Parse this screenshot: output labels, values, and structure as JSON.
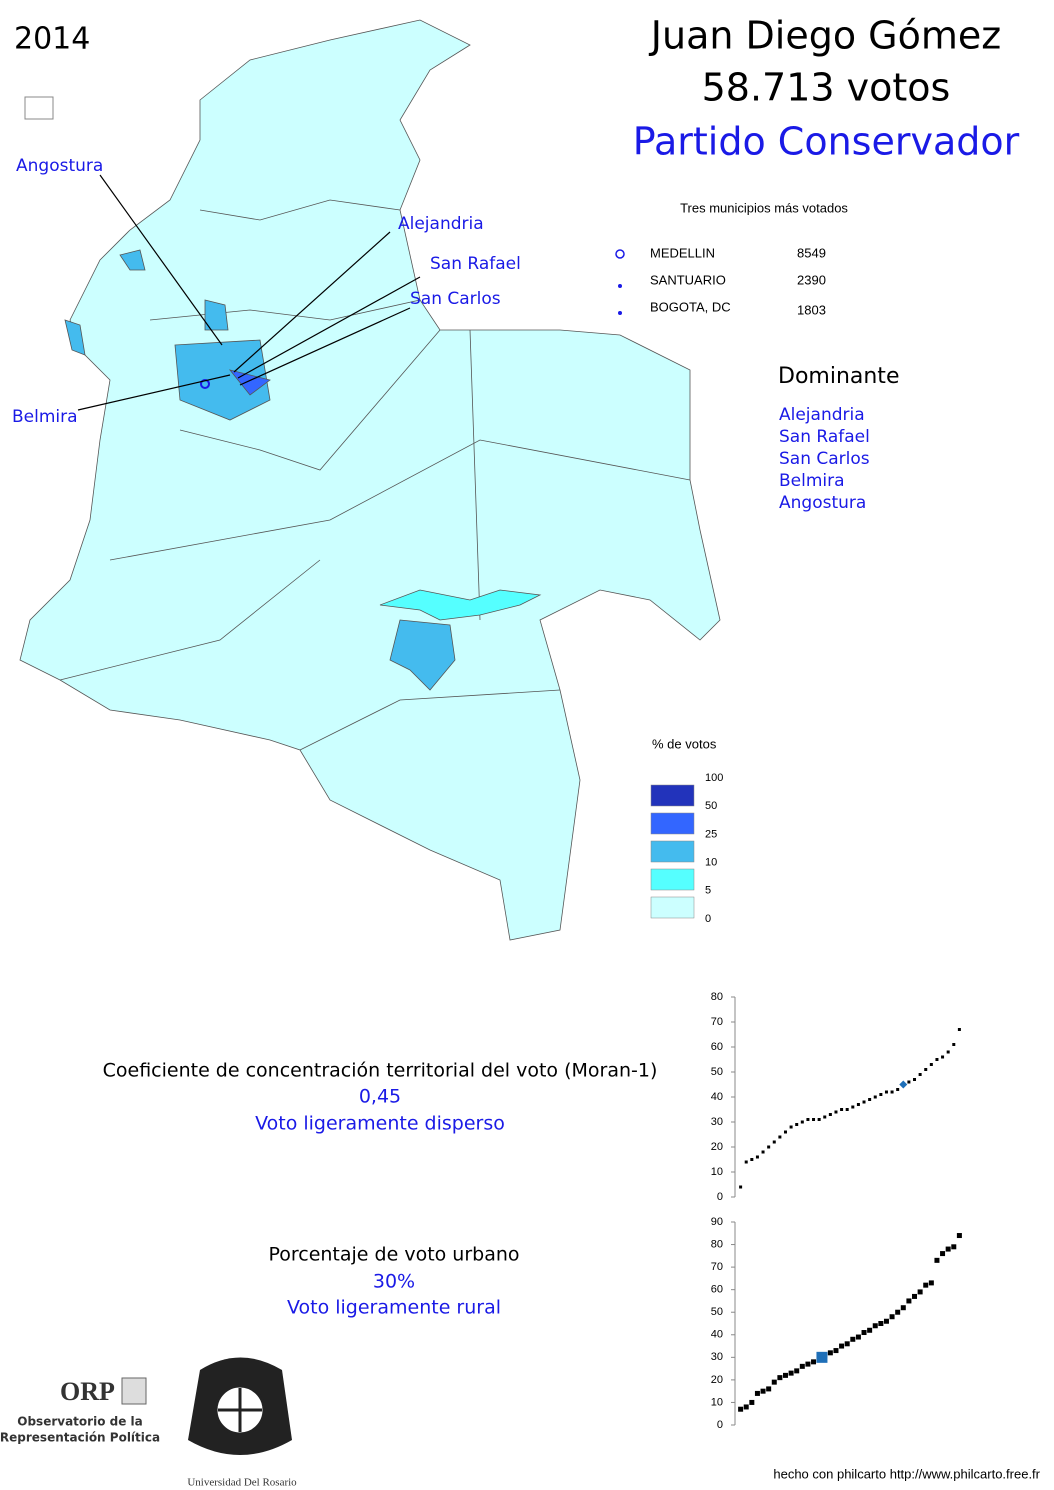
{
  "header": {
    "year": "2014",
    "candidate": "Juan Diego Gómez",
    "votes": "58.713 votos",
    "party": "Partido Conservador"
  },
  "top_municipalities": {
    "title": "Tres municipios más votados",
    "rows": [
      [
        "MEDELLIN",
        8549
      ],
      [
        "SANTUARIO",
        2390
      ],
      [
        "BOGOTA, DC",
        1803
      ]
    ]
  },
  "dominant": {
    "title": "Dominante",
    "items": [
      "Alejandria",
      "San Rafael",
      "San Carlos",
      "Belmira",
      "Angostura"
    ]
  },
  "map_labels": [
    "Angostura",
    "Alejandria",
    "San Rafael",
    "San Carlos",
    "Belmira"
  ],
  "legend": {
    "title": "% de votos",
    "breaks": [
      100,
      50,
      25,
      10,
      5,
      0
    ],
    "colors": [
      "#2233bb",
      "#3366ff",
      "#44bbee",
      "#55ffff",
      "#ccffff"
    ]
  },
  "moran": {
    "title": "Coeficiente de concentración territorial del voto (Moran-1)",
    "value": "0,45",
    "verdict": "Voto ligeramente disperso"
  },
  "urban": {
    "title": "Porcentaje de voto urbano",
    "value": "30%",
    "verdict": "Voto ligeramente rural"
  },
  "chart_data": [
    {
      "type": "scatter",
      "color": "#000000",
      "x": [
        1,
        2,
        3,
        4,
        5,
        6,
        7,
        8,
        9,
        10,
        11,
        12,
        13,
        14,
        15,
        16,
        17,
        18,
        19,
        20,
        21,
        22,
        23,
        24,
        25,
        26,
        27,
        28,
        29,
        30,
        31,
        32,
        33,
        34,
        35,
        36,
        37,
        38,
        39,
        40
      ],
      "values": [
        4,
        14,
        15,
        16,
        18,
        20,
        22,
        24,
        26,
        28,
        29,
        30,
        31,
        31,
        31,
        32,
        33,
        34,
        35,
        35,
        36,
        37,
        38,
        39,
        40,
        41,
        42,
        42,
        43,
        45,
        46,
        47,
        49,
        51,
        53,
        55,
        56,
        58,
        61,
        67
      ],
      "highlight": {
        "x": 30,
        "value": 45,
        "color": "#1e6fb8"
      },
      "xlim": [
        0,
        41
      ],
      "ylim": [
        0,
        80
      ],
      "yticks": [
        0,
        10,
        20,
        30,
        40,
        50,
        60,
        70,
        80
      ]
    },
    {
      "type": "scatter",
      "color": "#000000",
      "x": [
        1,
        2,
        3,
        4,
        5,
        6,
        7,
        8,
        9,
        10,
        11,
        12,
        13,
        14,
        15,
        16,
        17,
        18,
        19,
        20,
        21,
        22,
        23,
        24,
        25,
        26,
        27,
        28,
        29,
        30,
        31,
        32,
        33,
        34,
        35,
        36,
        37,
        38,
        39,
        40
      ],
      "values": [
        7,
        8,
        10,
        14,
        15,
        16,
        19,
        21,
        22,
        23,
        24,
        26,
        27,
        28,
        29,
        31,
        32,
        33,
        35,
        36,
        38,
        39,
        41,
        42,
        44,
        45,
        46,
        48,
        50,
        52,
        55,
        57,
        59,
        62,
        63,
        73,
        76,
        78,
        79,
        84
      ],
      "highlight": {
        "x": 15.5,
        "value": 30,
        "color": "#1e6fb8"
      },
      "xlim": [
        0,
        41
      ],
      "ylim": [
        0,
        90
      ],
      "yticks": [
        0,
        10,
        20,
        30,
        40,
        50,
        60,
        70,
        80,
        90
      ]
    }
  ],
  "logos": {
    "orp": "ORP",
    "orp_line1": "Observatorio de la",
    "orp_line2": "Representación Política",
    "university": "Universidad Del Rosario"
  },
  "footer": "hecho con philcarto http://www.philcarto.free.fr"
}
